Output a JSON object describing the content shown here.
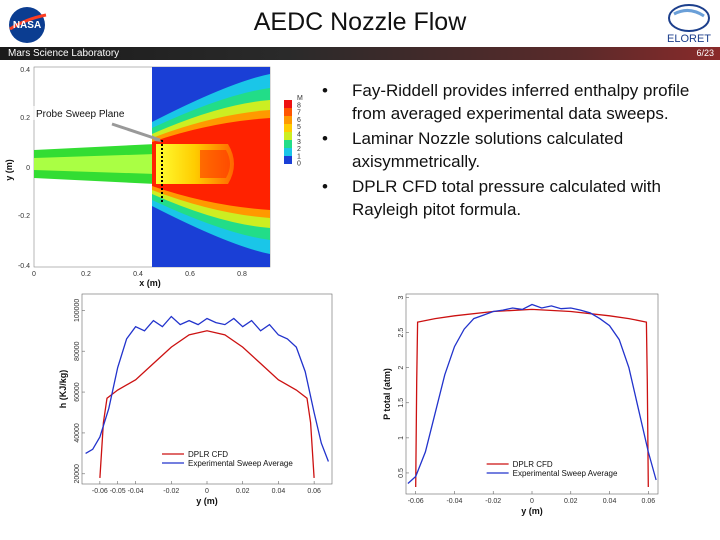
{
  "header": {
    "title": "AEDC Nozzle Flow",
    "subtitle_left": "Mars Science Laboratory",
    "page_number": "6/23",
    "right_logo_text": "ELORET",
    "colors": {
      "bar_dark": "#1a1a1a",
      "bar_red": "#8a2a2a"
    }
  },
  "bullets": [
    "Fay-Riddell provides inferred enthalpy profile from averaged experimental data sweeps.",
    "Laminar Nozzle solutions calculated axisymmetrically.",
    "DPLR CFD total pressure calculated with Rayleigh pitot formula."
  ],
  "contour_plot": {
    "annotation": "Probe Sweep Plane",
    "xlabel": "x (m)",
    "ylabel": "y (m)",
    "x_ticks": [
      "0",
      "0.2",
      "0.4",
      "0.6",
      "0.8"
    ],
    "y_ticks": [
      "0.4",
      "0.2",
      "0",
      "-0.2",
      "-0.4"
    ],
    "colorbar_labels": [
      "M",
      "8",
      "7",
      "6",
      "5",
      "4",
      "3",
      "2",
      "1",
      "0"
    ]
  },
  "chart_data": [
    {
      "type": "line",
      "xlabel": "y (m)",
      "ylabel": "h (KJ/kg)",
      "x_ticks": [
        "-0.06",
        "-0.05",
        "-0.04",
        "-0.02",
        "0",
        "0.02",
        "0.04",
        "0.06"
      ],
      "y_ticks": [
        "20000",
        "40000",
        "60000",
        "80000",
        "100000"
      ],
      "xlim": [
        -0.07,
        0.07
      ],
      "ylim": [
        15000,
        108000
      ],
      "legend_position": "bottom-center",
      "series": [
        {
          "name": "DPLR CFD",
          "color": "#cc1111",
          "x": [
            -0.06,
            -0.058,
            -0.056,
            -0.05,
            -0.04,
            -0.03,
            -0.02,
            -0.01,
            0,
            0.01,
            0.02,
            0.03,
            0.04,
            0.05,
            0.056,
            0.058,
            0.06
          ],
          "y": [
            18000,
            45000,
            57000,
            61000,
            66000,
            74000,
            82000,
            88000,
            90000,
            88000,
            82000,
            74000,
            66000,
            61000,
            57000,
            45000,
            18000
          ]
        },
        {
          "name": "Experimental Sweep Average",
          "color": "#2233cc",
          "x": [
            -0.068,
            -0.064,
            -0.06,
            -0.055,
            -0.05,
            -0.045,
            -0.04,
            -0.035,
            -0.03,
            -0.025,
            -0.02,
            -0.015,
            -0.01,
            -0.005,
            0,
            0.005,
            0.01,
            0.015,
            0.02,
            0.025,
            0.03,
            0.035,
            0.04,
            0.045,
            0.05,
            0.055,
            0.06,
            0.064,
            0.068
          ],
          "y": [
            30000,
            32000,
            38000,
            52000,
            72000,
            86000,
            92000,
            90000,
            95000,
            92000,
            97000,
            93000,
            95000,
            93000,
            96000,
            94000,
            93000,
            96000,
            92000,
            95000,
            90000,
            93000,
            88000,
            86000,
            82000,
            70000,
            50000,
            35000,
            26000
          ]
        }
      ]
    },
    {
      "type": "line",
      "xlabel": "y (m)",
      "ylabel": "P total (atm)",
      "x_ticks": [
        "-0.06",
        "-0.04",
        "-0.02",
        "0",
        "0.02",
        "0.04",
        "0.06"
      ],
      "y_ticks": [
        "0.5",
        "1",
        "1.5",
        "2",
        "2.5",
        "3"
      ],
      "xlim": [
        -0.065,
        0.065
      ],
      "ylim": [
        0.2,
        3.05
      ],
      "legend_position": "bottom-center",
      "series": [
        {
          "name": "DPLR CFD",
          "color": "#cc1111",
          "x": [
            -0.06,
            -0.0595,
            -0.059,
            -0.05,
            -0.04,
            -0.02,
            0,
            0.02,
            0.04,
            0.05,
            0.059,
            0.0595,
            0.06
          ],
          "y": [
            0.3,
            1.8,
            2.65,
            2.7,
            2.74,
            2.8,
            2.83,
            2.8,
            2.74,
            2.7,
            2.65,
            1.8,
            0.3
          ]
        },
        {
          "name": "Experimental Sweep Average",
          "color": "#2233cc",
          "x": [
            -0.064,
            -0.06,
            -0.055,
            -0.05,
            -0.045,
            -0.04,
            -0.035,
            -0.03,
            -0.025,
            -0.02,
            -0.015,
            -0.01,
            -0.005,
            0,
            0.005,
            0.01,
            0.015,
            0.02,
            0.025,
            0.03,
            0.035,
            0.04,
            0.045,
            0.05,
            0.055,
            0.06,
            0.064
          ],
          "y": [
            0.35,
            0.45,
            0.8,
            1.35,
            1.9,
            2.3,
            2.55,
            2.7,
            2.75,
            2.8,
            2.82,
            2.85,
            2.83,
            2.9,
            2.85,
            2.88,
            2.84,
            2.85,
            2.82,
            2.78,
            2.7,
            2.6,
            2.4,
            2.0,
            1.4,
            0.8,
            0.4
          ]
        }
      ]
    }
  ]
}
